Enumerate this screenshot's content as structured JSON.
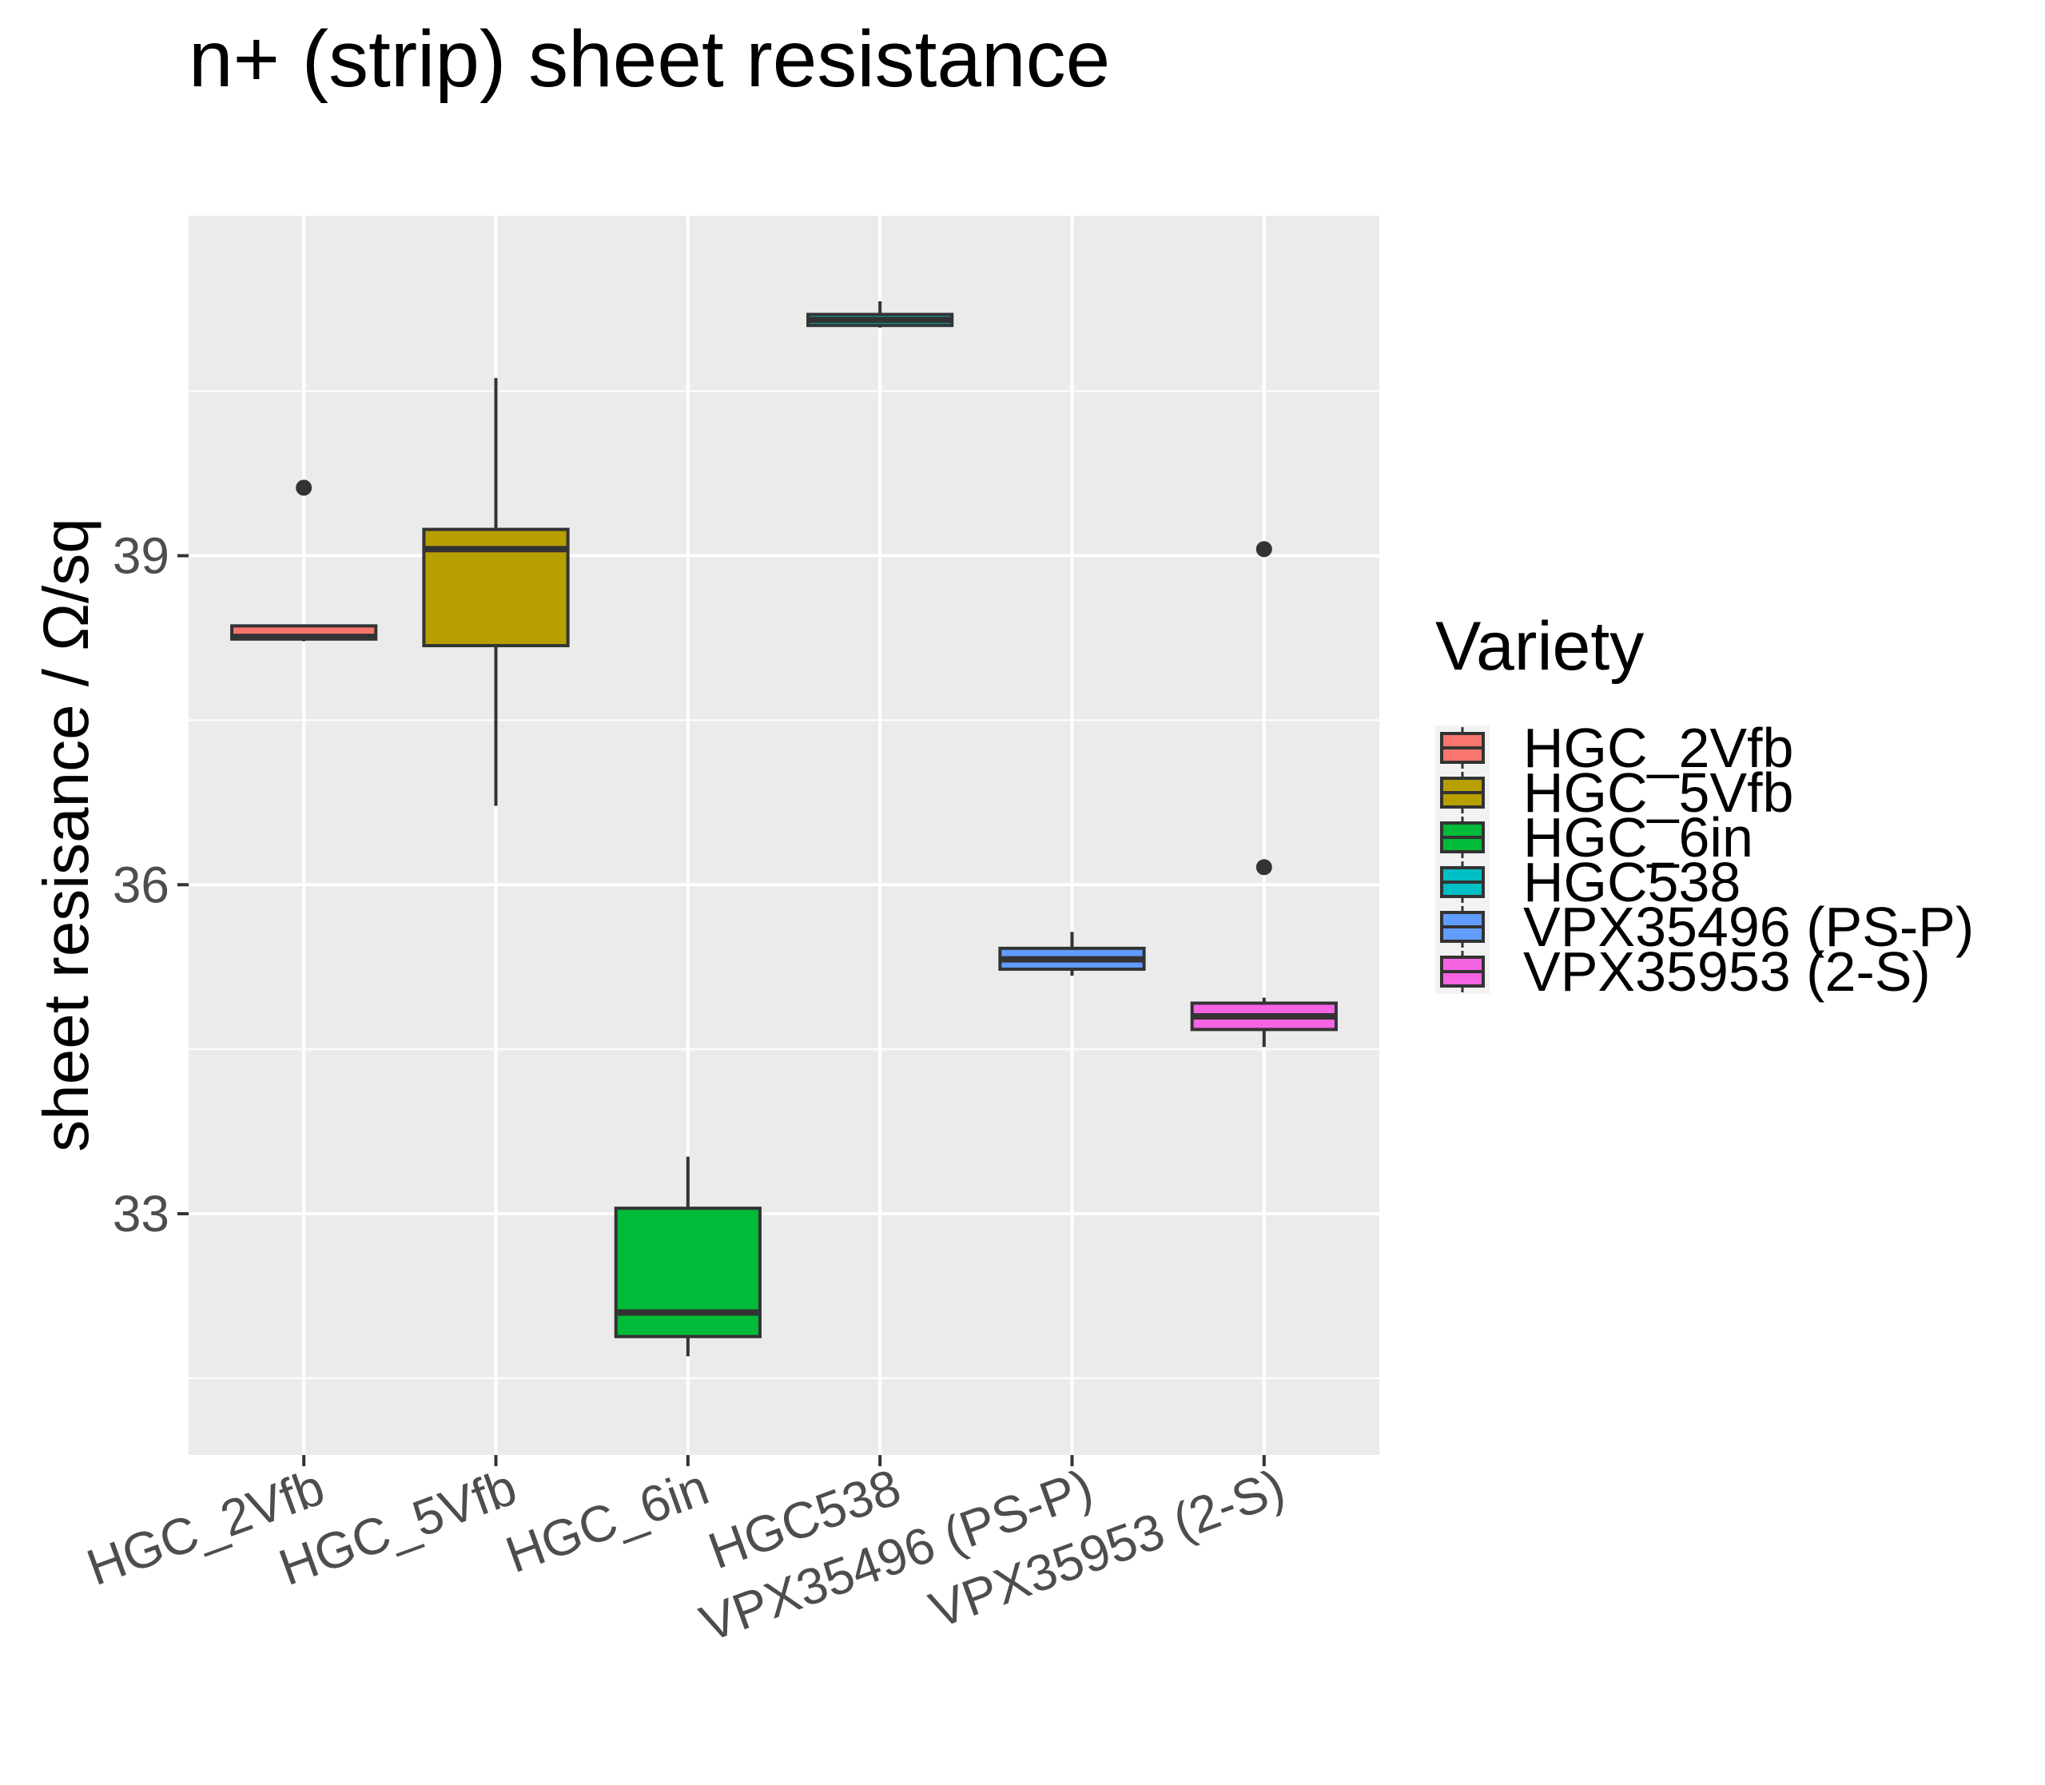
{
  "chart_data": {
    "type": "boxplot",
    "title": "n+ (strip) sheet resistance",
    "xlabel": "",
    "ylabel": "sheet resisance / Ω/sq",
    "ylim": [
      30.8,
      42.1
    ],
    "yticks": [
      33,
      36,
      39
    ],
    "grid": true,
    "legend": {
      "title": "Variety",
      "placement": "right"
    },
    "categories": [
      "HGC_2Vfb",
      "HGC_5Vfb",
      "HGC_6in",
      "HGC538",
      "VPX35496 (PS-P)",
      "VPX35953 (2-S)"
    ],
    "series": [
      {
        "name": "HGC_2Vfb",
        "color": "#F8766D",
        "min": 38.22,
        "q1": 38.24,
        "median": 38.26,
        "q3": 38.36,
        "max": 38.36,
        "outliers": [
          39.62
        ]
      },
      {
        "name": "HGC_5Vfb",
        "color": "#B79F00",
        "min": 36.72,
        "q1": 38.18,
        "median": 39.06,
        "q3": 39.24,
        "max": 40.62,
        "outliers": []
      },
      {
        "name": "HGC_6in",
        "color": "#00BA38",
        "min": 31.7,
        "q1": 31.88,
        "median": 32.1,
        "q3": 33.05,
        "max": 33.52,
        "outliers": []
      },
      {
        "name": "HGC538",
        "color": "#00BFC4",
        "min": 41.08,
        "q1": 41.1,
        "median": 41.15,
        "q3": 41.2,
        "max": 41.32,
        "outliers": []
      },
      {
        "name": "VPX35496 (PS-P)",
        "color": "#619CFF",
        "min": 35.17,
        "q1": 35.23,
        "median": 35.32,
        "q3": 35.42,
        "max": 35.57,
        "outliers": []
      },
      {
        "name": "VPX35953 (2-S)",
        "color": "#F564E3",
        "min": 34.52,
        "q1": 34.68,
        "median": 34.8,
        "q3": 34.92,
        "max": 34.97,
        "outliers": [
          39.06,
          36.16
        ]
      }
    ]
  }
}
